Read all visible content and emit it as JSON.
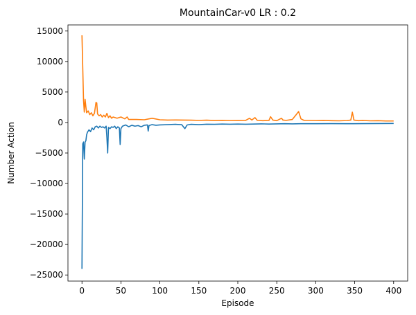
{
  "chart_data": {
    "type": "line",
    "title": "MountainCar-v0 LR : 0.2",
    "xlabel": "Episode",
    "ylabel": "Number Action",
    "xlim": [
      -18,
      418
    ],
    "ylim": [
      -26000,
      16000
    ],
    "xticks": [
      0,
      50,
      100,
      150,
      200,
      250,
      300,
      350,
      400
    ],
    "yticks": [
      -25000,
      -20000,
      -15000,
      -10000,
      -5000,
      0,
      5000,
      10000,
      15000
    ],
    "grid": false,
    "series": [
      {
        "color": "#ff7f0e",
        "points": [
          [
            0,
            14300
          ],
          [
            1,
            9000
          ],
          [
            2,
            3600
          ],
          [
            3,
            1700
          ],
          [
            4,
            3800
          ],
          [
            5,
            2600
          ],
          [
            6,
            1600
          ],
          [
            8,
            1900
          ],
          [
            10,
            1300
          ],
          [
            12,
            1600
          ],
          [
            14,
            1100
          ],
          [
            16,
            1500
          ],
          [
            18,
            3300
          ],
          [
            19,
            3200
          ],
          [
            20,
            1400
          ],
          [
            22,
            1100
          ],
          [
            24,
            1300
          ],
          [
            26,
            900
          ],
          [
            28,
            1200
          ],
          [
            30,
            900
          ],
          [
            32,
            1500
          ],
          [
            34,
            800
          ],
          [
            36,
            1100
          ],
          [
            38,
            700
          ],
          [
            40,
            900
          ],
          [
            45,
            700
          ],
          [
            50,
            900
          ],
          [
            55,
            600
          ],
          [
            58,
            900
          ],
          [
            60,
            500
          ],
          [
            70,
            500
          ],
          [
            80,
            450
          ],
          [
            90,
            700
          ],
          [
            100,
            450
          ],
          [
            110,
            400
          ],
          [
            120,
            420
          ],
          [
            130,
            400
          ],
          [
            140,
            380
          ],
          [
            150,
            350
          ],
          [
            160,
            380
          ],
          [
            170,
            330
          ],
          [
            180,
            360
          ],
          [
            190,
            320
          ],
          [
            200,
            330
          ],
          [
            210,
            340
          ],
          [
            215,
            700
          ],
          [
            218,
            400
          ],
          [
            222,
            800
          ],
          [
            225,
            350
          ],
          [
            232,
            300
          ],
          [
            240,
            340
          ],
          [
            242,
            950
          ],
          [
            245,
            400
          ],
          [
            250,
            300
          ],
          [
            256,
            700
          ],
          [
            258,
            400
          ],
          [
            262,
            350
          ],
          [
            270,
            500
          ],
          [
            275,
            1300
          ],
          [
            278,
            1800
          ],
          [
            281,
            600
          ],
          [
            285,
            350
          ],
          [
            290,
            350
          ],
          [
            300,
            320
          ],
          [
            310,
            340
          ],
          [
            320,
            300
          ],
          [
            330,
            280
          ],
          [
            340,
            320
          ],
          [
            345,
            400
          ],
          [
            347,
            1700
          ],
          [
            349,
            400
          ],
          [
            355,
            300
          ],
          [
            360,
            340
          ],
          [
            370,
            280
          ],
          [
            380,
            300
          ],
          [
            390,
            250
          ],
          [
            400,
            250
          ]
        ]
      },
      {
        "color": "#1f77b4",
        "points": [
          [
            0,
            -24000
          ],
          [
            1,
            -3500
          ],
          [
            2,
            -3200
          ],
          [
            3,
            -6000
          ],
          [
            4,
            -3200
          ],
          [
            5,
            -3000
          ],
          [
            6,
            -2000
          ],
          [
            7,
            -1600
          ],
          [
            9,
            -1200
          ],
          [
            11,
            -1500
          ],
          [
            13,
            -900
          ],
          [
            15,
            -1200
          ],
          [
            17,
            -700
          ],
          [
            19,
            -600
          ],
          [
            21,
            -900
          ],
          [
            23,
            -600
          ],
          [
            25,
            -800
          ],
          [
            27,
            -700
          ],
          [
            29,
            -900
          ],
          [
            31,
            -600
          ],
          [
            32,
            -2500
          ],
          [
            33,
            -5000
          ],
          [
            34,
            -800
          ],
          [
            36,
            -1000
          ],
          [
            38,
            -700
          ],
          [
            40,
            -800
          ],
          [
            42,
            -600
          ],
          [
            44,
            -1000
          ],
          [
            46,
            -700
          ],
          [
            48,
            -900
          ],
          [
            49,
            -3600
          ],
          [
            50,
            -1000
          ],
          [
            52,
            -600
          ],
          [
            56,
            -400
          ],
          [
            60,
            -700
          ],
          [
            64,
            -450
          ],
          [
            68,
            -600
          ],
          [
            72,
            -500
          ],
          [
            76,
            -700
          ],
          [
            80,
            -450
          ],
          [
            84,
            -400
          ],
          [
            85,
            -1400
          ],
          [
            86,
            -500
          ],
          [
            90,
            -350
          ],
          [
            95,
            -450
          ],
          [
            100,
            -400
          ],
          [
            110,
            -350
          ],
          [
            120,
            -300
          ],
          [
            128,
            -350
          ],
          [
            132,
            -1000
          ],
          [
            135,
            -400
          ],
          [
            140,
            -300
          ],
          [
            150,
            -350
          ],
          [
            160,
            -280
          ],
          [
            170,
            -300
          ],
          [
            180,
            -250
          ],
          [
            190,
            -280
          ],
          [
            200,
            -250
          ],
          [
            210,
            -280
          ],
          [
            220,
            -250
          ],
          [
            230,
            -220
          ],
          [
            240,
            -250
          ],
          [
            250,
            -220
          ],
          [
            260,
            -200
          ],
          [
            270,
            -220
          ],
          [
            280,
            -200
          ],
          [
            290,
            -200
          ],
          [
            300,
            -200
          ],
          [
            320,
            -180
          ],
          [
            340,
            -200
          ],
          [
            360,
            -180
          ],
          [
            380,
            -170
          ],
          [
            400,
            -160
          ]
        ]
      }
    ]
  }
}
